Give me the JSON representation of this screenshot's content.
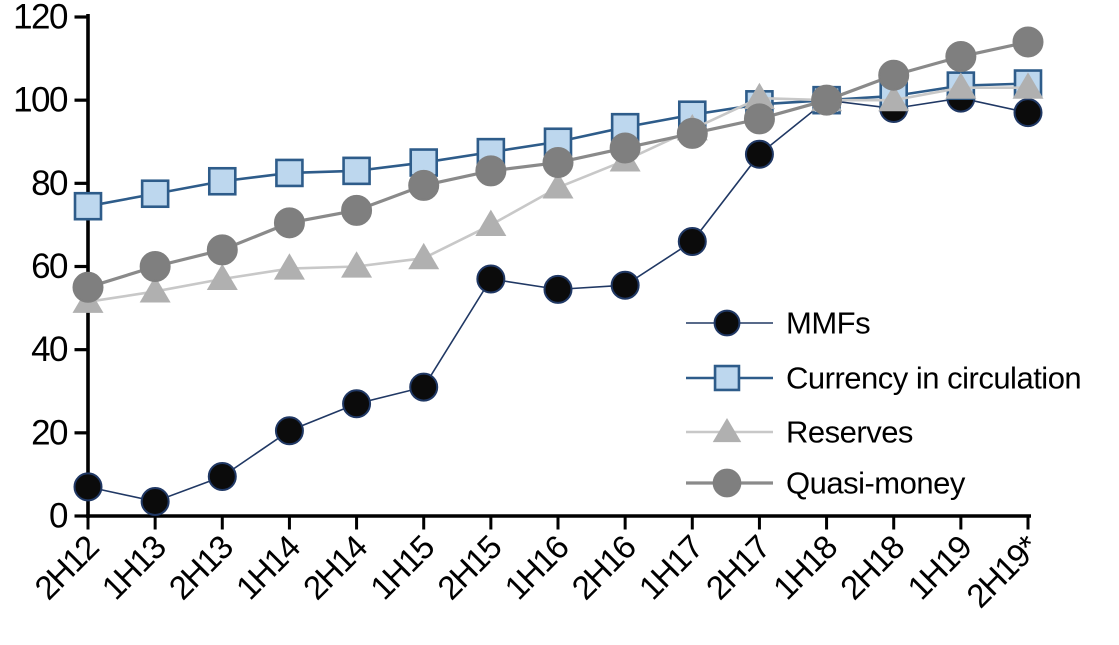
{
  "chart_data": {
    "type": "line",
    "title": "",
    "xlabel": "",
    "ylabel": "",
    "ylim": [
      0,
      120
    ],
    "yticks": [
      0,
      20,
      40,
      60,
      80,
      100,
      120
    ],
    "grid": false,
    "legend_position": "inside-right",
    "axis_color": "#000000",
    "background_color": "#ffffff",
    "categories": [
      "2H12",
      "1H13",
      "2H13",
      "1H14",
      "2H14",
      "1H15",
      "2H15",
      "1H16",
      "2H16",
      "1H17",
      "2H17",
      "1H18",
      "2H18",
      "1H19",
      "2H19*"
    ],
    "series": [
      {
        "name": "MMFs",
        "marker": "circle",
        "marker_size": 27,
        "marker_fill": "#0b0b0b",
        "marker_stroke": "#203864",
        "line_color": "#203864",
        "line_width": 1.6,
        "values": [
          7,
          3.5,
          9.5,
          20.5,
          27,
          31,
          57,
          54.5,
          55.5,
          66,
          87,
          100,
          98,
          100.5,
          97
        ]
      },
      {
        "name": "Currency in circulation",
        "marker": "square",
        "marker_size": 26,
        "marker_fill": "#bdd7ee",
        "marker_stroke": "#2e5c8a",
        "line_color": "#2e5c8a",
        "line_width": 2.6,
        "values": [
          74.5,
          77.5,
          80.5,
          82.5,
          83,
          85,
          87.5,
          90,
          93.5,
          96.5,
          99,
          100,
          101,
          103.5,
          104
        ]
      },
      {
        "name": "Reserves",
        "marker": "triangle",
        "marker_size": 31,
        "marker_fill": "#b0b0b0",
        "marker_stroke": "none",
        "line_color": "#c8c8c8",
        "line_width": 2.6,
        "values": [
          51.5,
          54,
          57,
          59.5,
          60,
          62,
          70,
          79,
          85.5,
          93,
          100.5,
          100,
          100,
          103,
          103
        ]
      },
      {
        "name": "Quasi-money",
        "marker": "circle",
        "marker_size": 29,
        "marker_fill": "#7f7f7f",
        "marker_stroke": "#7f7f7f",
        "line_color": "#8a8a8a",
        "line_width": 3.2,
        "values": [
          55,
          60,
          64,
          70.5,
          73.5,
          79.5,
          83,
          85,
          88.5,
          92,
          95.5,
          100,
          106,
          110.5,
          114
        ]
      }
    ]
  }
}
